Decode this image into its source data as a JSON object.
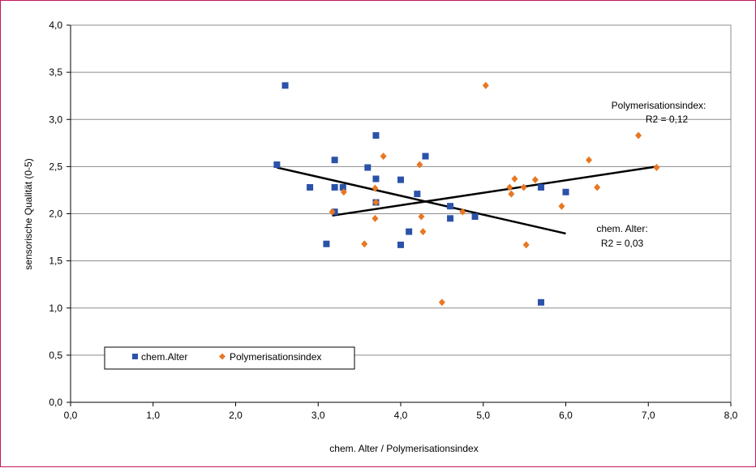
{
  "chart_data": {
    "type": "scatter",
    "xlabel": "chem. Alter / Polymerisationsindex",
    "ylabel": "sensorische Qualität (0-5)",
    "xlim": [
      0,
      8
    ],
    "ylim": [
      0,
      4
    ],
    "x_ticks": [
      "0,0",
      "1,0",
      "2,0",
      "3,0",
      "4,0",
      "5,0",
      "6,0",
      "7,0",
      "8,0"
    ],
    "y_ticks": [
      "0,0",
      "0,5",
      "1,0",
      "1,5",
      "2,0",
      "2,5",
      "3,0",
      "3,5",
      "4,0"
    ],
    "grid": "horizontal",
    "legend_position": "bottom-left",
    "series": [
      {
        "name": "chem.Alter",
        "marker": "square",
        "color": "#2a52a8",
        "points": [
          [
            2.5,
            2.52
          ],
          [
            2.6,
            3.36
          ],
          [
            2.9,
            2.28
          ],
          [
            3.1,
            1.68
          ],
          [
            3.2,
            2.57
          ],
          [
            3.2,
            2.28
          ],
          [
            3.2,
            2.02
          ],
          [
            3.3,
            2.28
          ],
          [
            3.6,
            2.49
          ],
          [
            3.7,
            2.83
          ],
          [
            3.7,
            2.37
          ],
          [
            3.7,
            2.12
          ],
          [
            4.0,
            2.36
          ],
          [
            4.0,
            1.67
          ],
          [
            4.1,
            1.81
          ],
          [
            4.2,
            2.21
          ],
          [
            4.3,
            2.61
          ],
          [
            4.6,
            2.08
          ],
          [
            4.6,
            1.95
          ],
          [
            4.9,
            1.97
          ],
          [
            5.7,
            2.28
          ],
          [
            5.7,
            1.06
          ],
          [
            6.0,
            2.23
          ]
        ],
        "trendline": {
          "x": [
            2.5,
            6.0
          ],
          "y": [
            2.49,
            1.79
          ]
        }
      },
      {
        "name": "Polymerisationsindex",
        "marker": "diamond",
        "color": "#e87722",
        "points": [
          [
            3.17,
            2.02
          ],
          [
            3.31,
            2.23
          ],
          [
            3.56,
            1.68
          ],
          [
            3.69,
            2.27
          ],
          [
            3.69,
            1.95
          ],
          [
            3.7,
            2.12
          ],
          [
            3.79,
            2.61
          ],
          [
            4.23,
            2.52
          ],
          [
            4.25,
            1.97
          ],
          [
            4.27,
            1.81
          ],
          [
            4.5,
            1.06
          ],
          [
            4.75,
            2.02
          ],
          [
            5.03,
            3.36
          ],
          [
            5.32,
            2.28
          ],
          [
            5.34,
            2.21
          ],
          [
            5.38,
            2.37
          ],
          [
            5.49,
            2.28
          ],
          [
            5.52,
            1.67
          ],
          [
            5.63,
            2.36
          ],
          [
            5.95,
            2.08
          ],
          [
            6.28,
            2.57
          ],
          [
            6.38,
            2.28
          ],
          [
            6.88,
            2.83
          ],
          [
            7.1,
            2.49
          ]
        ],
        "trendline": {
          "x": [
            3.17,
            7.1
          ],
          "y": [
            1.98,
            2.5
          ]
        }
      }
    ],
    "annotations": [
      {
        "lines": [
          "Polymerisationsindex:",
          "R2 = 0,12"
        ]
      },
      {
        "lines": [
          "chem. Alter:",
          "R2 = 0,03"
        ]
      }
    ]
  }
}
